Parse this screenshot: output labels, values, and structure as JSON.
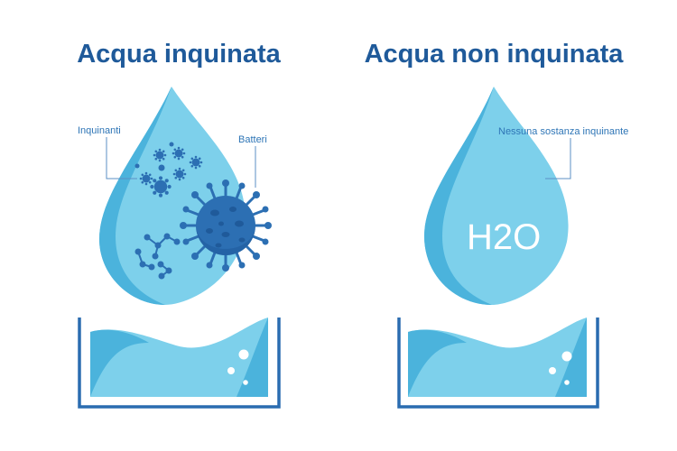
{
  "left": {
    "title": "Acqua inquinata",
    "label_pollutants": "Inquinanti",
    "label_bacteria": "Batteri"
  },
  "right": {
    "title": "Acqua non inquinata",
    "label_no_pollutants": "Nessuna sostanza inquinante",
    "formula": "H2O"
  },
  "colors": {
    "title": "#1f5a9a",
    "label": "#2e75b6",
    "drop_light": "#7dd0eb",
    "drop_dark": "#4bb3dc",
    "virus": "#2c6fb3",
    "container": "#2a6cb0"
  }
}
